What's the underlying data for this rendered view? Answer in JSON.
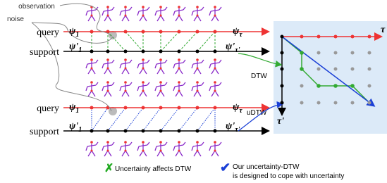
{
  "noise_label": [
    "observation",
    "noise"
  ],
  "top": {
    "query": "query",
    "support": "support",
    "psi_1": {
      "symbol": "ψ",
      "sub": "1"
    },
    "psi_tau": {
      "symbol": "ψ",
      "sub": "τ"
    },
    "psi_prime_1": {
      "symbol": "ψ'",
      "sub": "1"
    },
    "psi_prime_tau": {
      "symbol": "ψ'",
      "sub": "τ'"
    }
  },
  "bottom": {
    "query": "query",
    "support": "support",
    "psi_1": {
      "symbol": "ψ",
      "sub": "1"
    },
    "psi_tau": {
      "symbol": "ψ",
      "sub": "τ"
    },
    "psi_prime_1": {
      "symbol": "ψ'",
      "sub": "1"
    },
    "psi_prime_tau": {
      "symbol": "ψ'",
      "sub": "τ'"
    }
  },
  "grid": {
    "x_axis": "τ",
    "y_axis": "τ'",
    "dtw": "DTW",
    "udtw": "uDTW"
  },
  "legend": {
    "cross": "Uncertainty affects DTW",
    "check": [
      "Our uncertainty-DTW",
      "is designed to cope with uncertainty"
    ]
  }
}
